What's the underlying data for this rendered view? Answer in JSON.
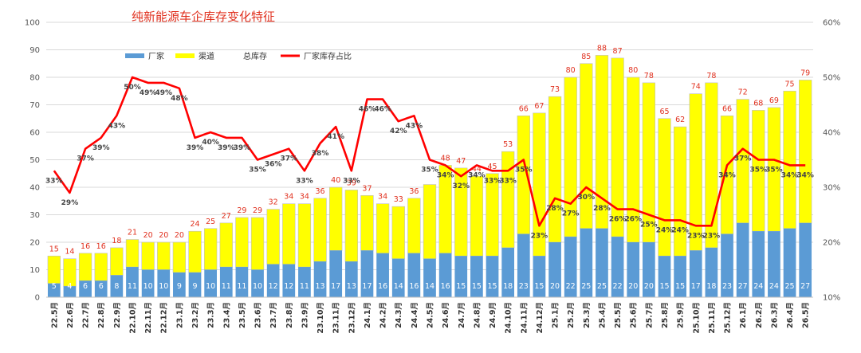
{
  "chart_data": {
    "type": "bar",
    "title": "纯新能源车企库存变化特征",
    "stacked": true,
    "categories": [
      "22.5月",
      "22.6月",
      "22.7月",
      "22.8月",
      "22.9月",
      "22.10月",
      "22.11月",
      "22.12月",
      "23.1月",
      "23.2月",
      "23.3月",
      "23.4月",
      "23.5月",
      "23.6月",
      "23.7月",
      "23.8月",
      "23.9月",
      "23.10月",
      "23.11月",
      "23.12月",
      "24.1月",
      "24.2月",
      "24.3月",
      "24.4月",
      "24.5月",
      "24.6月",
      "24.7月",
      "24.8月",
      "24.9月",
      "24.10月",
      "24.11月",
      "24.12月",
      "25.1月",
      "25.2月",
      "25.3月",
      "25.4月",
      "25.5月",
      "25.6月",
      "25.7月",
      "25.8月",
      "25.9月",
      "25.10月",
      "25.11月",
      "25.12月",
      "26.1月",
      "26.2月",
      "26.3月",
      "26.4月",
      "26.5月"
    ],
    "series": [
      {
        "name": "厂家",
        "kind": "bar",
        "color": "#5b9bd5",
        "values": [
          5,
          4,
          6,
          6,
          8,
          11,
          10,
          10,
          9,
          9,
          10,
          11,
          11,
          10,
          12,
          12,
          11,
          13,
          17,
          13,
          17,
          16,
          14,
          16,
          14,
          16,
          15,
          15,
          15,
          18,
          23,
          15,
          20,
          22,
          25,
          25,
          22,
          20,
          20,
          15,
          15,
          17,
          18,
          23,
          27,
          24,
          24,
          25,
          27
        ]
      },
      {
        "name": "渠道",
        "kind": "bar",
        "color": "#ffff00",
        "values": [
          10,
          10,
          10,
          10,
          10,
          10,
          10,
          10,
          11,
          15,
          15,
          16,
          18,
          19,
          20,
          22,
          23,
          23,
          23,
          26,
          20,
          18,
          19,
          20,
          27,
          32,
          32,
          29,
          30,
          35,
          43,
          52,
          53,
          58,
          60,
          63,
          65,
          60,
          58,
          50,
          47,
          57,
          60,
          43,
          45,
          44,
          45,
          50,
          52
        ]
      },
      {
        "name": "总库存",
        "kind": "label",
        "values": [
          15,
          14,
          16,
          16,
          18,
          21,
          20,
          20,
          20,
          24,
          25,
          27,
          29,
          29,
          32,
          34,
          34,
          36,
          40,
          39,
          37,
          34,
          33,
          36,
          41,
          48,
          47,
          44,
          45,
          53,
          66,
          67,
          73,
          80,
          85,
          88,
          87,
          80,
          78,
          65,
          62,
          74,
          78,
          66,
          72,
          68,
          69,
          75,
          79
        ],
        "shown": [
          true,
          true,
          true,
          true,
          true,
          true,
          true,
          true,
          true,
          true,
          true,
          true,
          true,
          true,
          true,
          true,
          true,
          true,
          true,
          true,
          true,
          true,
          true,
          true,
          false,
          true,
          true,
          true,
          true,
          true,
          true,
          true,
          true,
          true,
          true,
          true,
          true,
          true,
          true,
          true,
          true,
          true,
          true,
          true,
          true,
          true,
          true,
          true,
          true
        ]
      },
      {
        "name": "厂家库存占比",
        "kind": "line",
        "axis": "right",
        "color": "#ff0000",
        "values": [
          33,
          29,
          37,
          39,
          43,
          50,
          49,
          49,
          48,
          39,
          40,
          39,
          39,
          35,
          36,
          37,
          33,
          38,
          41,
          33,
          46,
          46,
          42,
          43,
          35,
          34,
          32,
          34,
          33,
          33,
          35,
          23,
          28,
          27,
          30,
          28,
          26,
          26,
          25,
          24,
          24,
          23,
          23,
          34,
          37,
          35,
          35,
          34,
          34
        ],
        "labels": [
          "33%",
          "29%",
          "37%",
          "39%",
          "43%",
          "50%",
          "49%",
          "49%",
          "48%",
          "39%",
          "40%",
          "39%",
          "39%",
          "35%",
          "36%",
          "37%",
          "33%",
          "38%",
          "41%",
          "33%",
          "46%",
          "46%",
          "42%",
          "43%",
          "35%",
          "34%",
          "32%",
          "34%",
          "33%",
          "33%",
          "35%",
          "23%",
          "28%",
          "27%",
          "30%",
          "28%",
          "26%",
          "26%",
          "25%",
          "24%",
          "24%",
          "23%",
          "23%",
          "34%",
          "37%",
          "35%",
          "35%",
          "34%",
          "34%"
        ]
      }
    ],
    "y_left": {
      "min": 0,
      "max": 100,
      "step": 10,
      "ticks": [
        "0",
        "10",
        "20",
        "30",
        "40",
        "50",
        "60",
        "70",
        "80",
        "90",
        "100"
      ]
    },
    "y_right": {
      "min": 10,
      "max": 60,
      "step": 10,
      "ticks": [
        "10%",
        "20%",
        "30%",
        "40%",
        "50%",
        "60%"
      ]
    },
    "grid": true,
    "legend_position": "top-left"
  }
}
